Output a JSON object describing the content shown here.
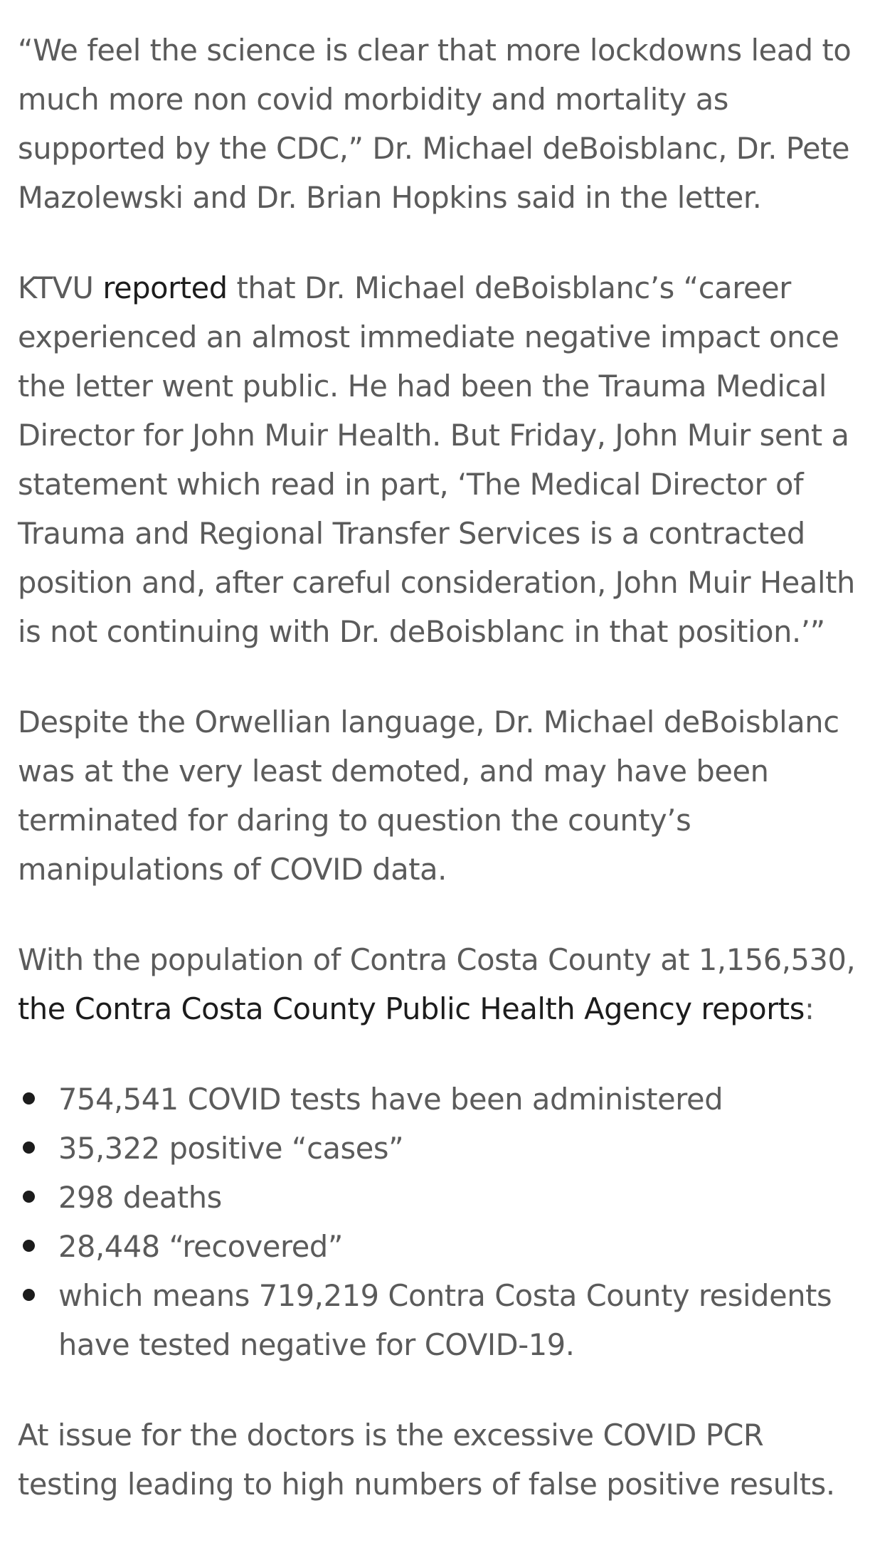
{
  "article": {
    "p1": {
      "text": "“We feel the science is clear that more lockdowns lead to much more non covid morbidity and mortality as supported by the CDC,” Dr. Michael deBoisblanc, Dr. Pete Mazolewski and Dr. Brian Hopkins said in the letter."
    },
    "p2": {
      "before": "KTVU ",
      "link": "reported",
      "after": " that Dr. Michael deBoisblanc’s “career experienced an almost immediate negative impact once the letter went public. He had been the Trauma Medical Director for John Muir Health. But Friday, John Muir sent a statement which read in part, ‘The Medical Director of Trauma and Regional Transfer Services is a contracted position and, after careful consideration, John Muir Health is not continuing with Dr. deBoisblanc in that position.’”"
    },
    "p3": {
      "text": "Despite the Orwellian language, Dr. Michael deBoisblanc was at the very least demoted, and may have been terminated for daring to question the county’s manipulations of COVID data."
    },
    "p4": {
      "before": "With the population of Contra Costa County at 1,156,530, ",
      "link": "the Contra Costa County Public Health Agency reports",
      "after": ":"
    },
    "list": [
      "754,541 COVID tests have been administered",
      "35,322 positive “cases”",
      "298 deaths",
      "28,448 “recovered”",
      "which means 719,219 Contra Costa County residents have tested negative for COVID-19."
    ],
    "p5": {
      "text": "At issue for the doctors is the excessive COVID PCR testing leading to high numbers of false positive results."
    }
  }
}
